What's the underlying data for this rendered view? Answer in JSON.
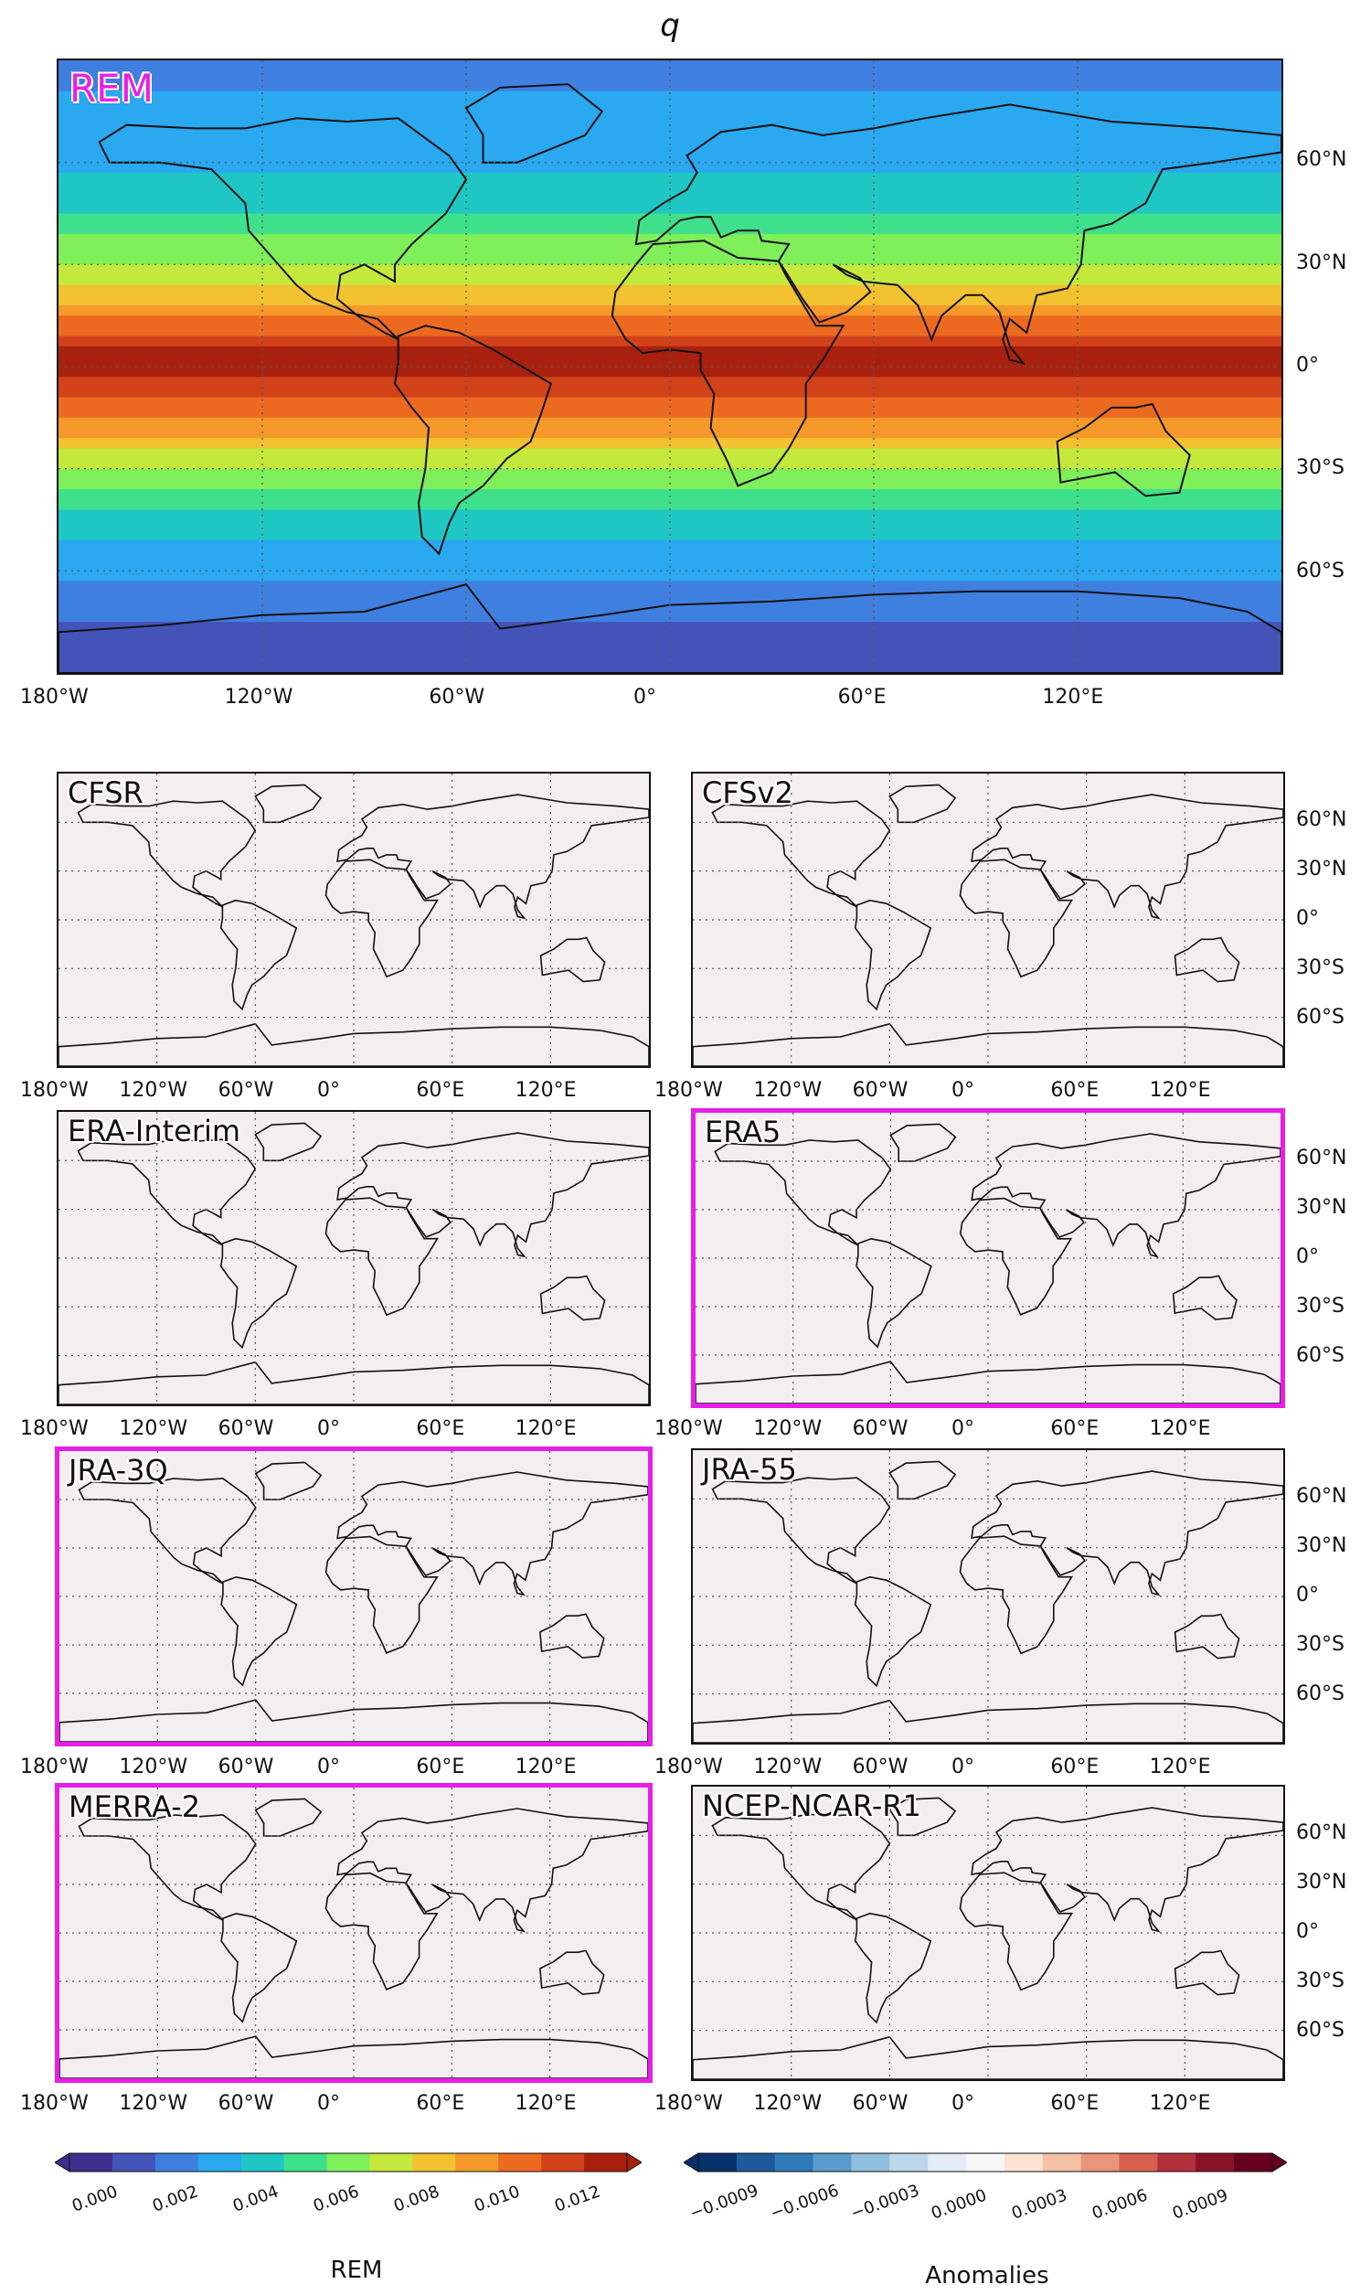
{
  "chart_data": [
    {
      "type": "heatmap",
      "title": "q",
      "panel_label": "REM",
      "highlighted": false,
      "x_ticks": [
        "180°W",
        "120°W",
        "60°W",
        "0°",
        "60°E",
        "120°E"
      ],
      "y_ticks": [
        "60°N",
        "30°N",
        "0°",
        "30°S",
        "60°S"
      ],
      "xlim": [
        -180,
        180
      ],
      "ylim": [
        -90,
        90
      ],
      "grid": true,
      "colorbar": "REM",
      "zonal_profile": {
        "lat": [
          90,
          75,
          60,
          45,
          30,
          15,
          5,
          0,
          -5,
          -15,
          -30,
          -45,
          -60,
          -75,
          -90
        ],
        "value": [
          0.0025,
          0.0028,
          0.0035,
          0.005,
          0.007,
          0.01,
          0.0125,
          0.013,
          0.012,
          0.0105,
          0.007,
          0.0045,
          0.003,
          0.0015,
          0.0005
        ]
      }
    },
    {
      "type": "heatmap",
      "panel_label": "CFSR",
      "highlighted": false,
      "colorbar": "Anomalies"
    },
    {
      "type": "heatmap",
      "panel_label": "CFSv2",
      "highlighted": false,
      "colorbar": "Anomalies"
    },
    {
      "type": "heatmap",
      "panel_label": "ERA-Interim",
      "highlighted": false,
      "colorbar": "Anomalies"
    },
    {
      "type": "heatmap",
      "panel_label": "ERA5",
      "highlighted": true,
      "colorbar": "Anomalies"
    },
    {
      "type": "heatmap",
      "panel_label": "JRA-3Q",
      "highlighted": true,
      "colorbar": "Anomalies"
    },
    {
      "type": "heatmap",
      "panel_label": "JRA-55",
      "highlighted": false,
      "colorbar": "Anomalies"
    },
    {
      "type": "heatmap",
      "panel_label": "MERRA-2",
      "highlighted": true,
      "colorbar": "Anomalies"
    },
    {
      "type": "heatmap",
      "panel_label": "NCEP-NCAR-R1",
      "highlighted": false,
      "colorbar": "Anomalies"
    }
  ],
  "page": {
    "title": "q",
    "x_ticks": [
      "180°W",
      "120°W",
      "60°W",
      "0°",
      "60°E",
      "120°E"
    ],
    "y_ticks": [
      "60°N",
      "30°N",
      "0°",
      "30°S",
      "60°S"
    ],
    "panels": [
      {
        "label": "REM"
      },
      {
        "label": "CFSR"
      },
      {
        "label": "CFSv2"
      },
      {
        "label": "ERA-Interim"
      },
      {
        "label": "ERA5"
      },
      {
        "label": "JRA-3Q"
      },
      {
        "label": "JRA-55"
      },
      {
        "label": "MERRA-2"
      },
      {
        "label": "NCEP-NCAR-R1"
      }
    ],
    "colorbar_rem": {
      "title": "REM",
      "ticks": [
        "0.000",
        "0.002",
        "0.004",
        "0.006",
        "0.008",
        "0.010",
        "0.012"
      ],
      "colors": [
        "#3b2e8c",
        "#4353b8",
        "#3f7fe0",
        "#2aa8f0",
        "#1fc7c4",
        "#3ee08c",
        "#7fef5a",
        "#c4e83c",
        "#f2c230",
        "#f59a2a",
        "#ec6a20",
        "#d2421a",
        "#a8200e"
      ]
    },
    "colorbar_anom": {
      "title": "Anomalies",
      "ticks": [
        "−0.0009",
        "−0.0006",
        "−0.0003",
        "0.0000",
        "0.0003",
        "0.0006",
        "0.0009"
      ],
      "colors": [
        "#08306b",
        "#1c5a99",
        "#2f7ab8",
        "#5a9dcc",
        "#8fc0de",
        "#bcd7ea",
        "#e2edf6",
        "#f7f7f7",
        "#fbe3d6",
        "#f6c2a6",
        "#e99577",
        "#d6604d",
        "#b2303a",
        "#8a1226",
        "#67001f"
      ]
    }
  }
}
